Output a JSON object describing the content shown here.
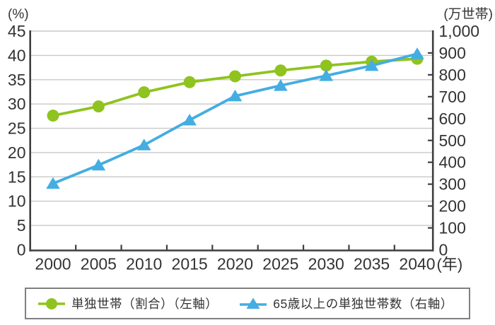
{
  "chart_data": {
    "type": "line",
    "title": "",
    "categories": [
      "2000",
      "2005",
      "2010",
      "2015",
      "2020",
      "2025",
      "2030",
      "2035",
      "2040"
    ],
    "x_suffix_label": "(年)",
    "series": [
      {
        "name": "単独世帯（割合）（左軸）",
        "axis": "left",
        "marker": "circle",
        "color": "#8fc31f",
        "values": [
          27.6,
          29.5,
          32.4,
          34.5,
          35.7,
          36.9,
          37.9,
          38.7,
          39.3
        ]
      },
      {
        "name": "65歳以上の単独世帯数（右軸）",
        "axis": "right",
        "marker": "triangle",
        "color": "#44ade2",
        "values": [
          303,
          387,
          479,
          593,
          703,
          751,
          796,
          842,
          896
        ]
      }
    ],
    "left_axis": {
      "unit_label": "(%)",
      "min": 0,
      "max": 45,
      "tick_labels": [
        "45",
        "40",
        "35",
        "30",
        "25",
        "20",
        "15",
        "10",
        "5",
        "0"
      ]
    },
    "right_axis": {
      "unit_label": "(万世帯)",
      "min": 0,
      "max": 1000,
      "tick_labels": [
        "1,000",
        "900",
        "800",
        "700",
        "600",
        "500",
        "400",
        "300",
        "200",
        "100",
        "0"
      ]
    },
    "grid": true,
    "legend_position": "bottom"
  },
  "style": {
    "grid_color": "#c9c9c9",
    "axis_color": "#3f3f3f",
    "text_color": "#333333",
    "legend_border_color": "#808080",
    "background": "#ffffff"
  }
}
